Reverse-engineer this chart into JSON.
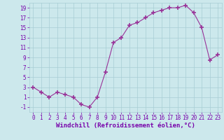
{
  "x": [
    0,
    1,
    2,
    3,
    4,
    5,
    6,
    7,
    8,
    9,
    10,
    11,
    12,
    13,
    14,
    15,
    16,
    17,
    18,
    19,
    20,
    21,
    22,
    23
  ],
  "y": [
    3,
    2,
    1,
    2,
    1.5,
    1,
    -0.5,
    -1,
    1,
    6,
    12,
    13,
    15.5,
    16,
    17,
    18,
    18.5,
    19,
    19,
    19.5,
    18,
    15,
    8.5,
    9.5
  ],
  "line_color": "#993399",
  "marker": "+",
  "marker_size": 4,
  "bg_color": "#cce8ec",
  "grid_color": "#a8cdd4",
  "xlabel": "Windchill (Refroidissement éolien,°C)",
  "xlim": [
    -0.5,
    23.5
  ],
  "ylim": [
    -2,
    20
  ],
  "yticks": [
    -1,
    1,
    3,
    5,
    7,
    9,
    11,
    13,
    15,
    17,
    19
  ],
  "xticks": [
    0,
    1,
    2,
    3,
    4,
    5,
    6,
    7,
    8,
    9,
    10,
    11,
    12,
    13,
    14,
    15,
    16,
    17,
    18,
    19,
    20,
    21,
    22,
    23
  ],
  "tick_color": "#7700aa",
  "label_color": "#7700aa",
  "font_size_axis": 6.5,
  "font_size_tick": 5.5
}
